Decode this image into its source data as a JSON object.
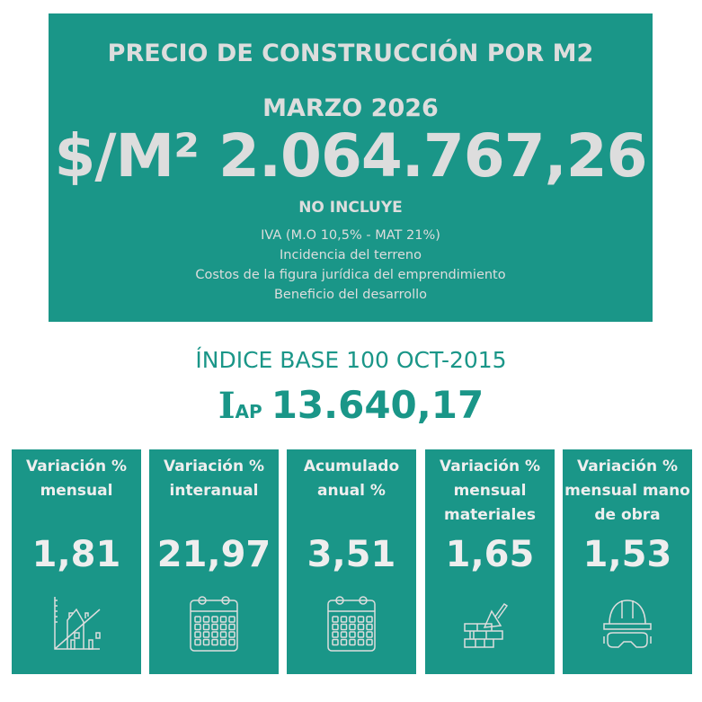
{
  "header": {
    "title": "PRECIO DE CONSTRUCCIÓN POR M2",
    "period": "MARZO 2026",
    "price": "$/M² 2.064.767,26",
    "excludes_title": "NO INCLUYE",
    "excludes": [
      "IVA (M.O 10,5% - MAT 21%)",
      "Incidencia del terreno",
      "Costos de la figura jurídica del emprendimiento",
      "Beneficio del desarrollo"
    ]
  },
  "index": {
    "title": "ÍNDICE BASE 100 OCT-2015",
    "symbol_i": "I",
    "symbol_ap": "AP",
    "value": "13.640,17"
  },
  "cards": [
    {
      "label": "Variación % mensual",
      "value": "1,81",
      "icon": "house-chart-icon"
    },
    {
      "label": "Variación % interanual",
      "value": "21,97",
      "icon": "calendar-icon"
    },
    {
      "label": "Acumulado anual %",
      "value": "3,51",
      "icon": "calendar-icon"
    },
    {
      "label": "Variación % mensual materiales",
      "value": "1,65",
      "icon": "bricks-trowel-icon"
    },
    {
      "label": "Variación % mensual mano de obra",
      "value": "1,53",
      "icon": "helmet-goggles-icon"
    }
  ],
  "colors": {
    "teal": "#1a9688",
    "text": "#dddddd"
  }
}
